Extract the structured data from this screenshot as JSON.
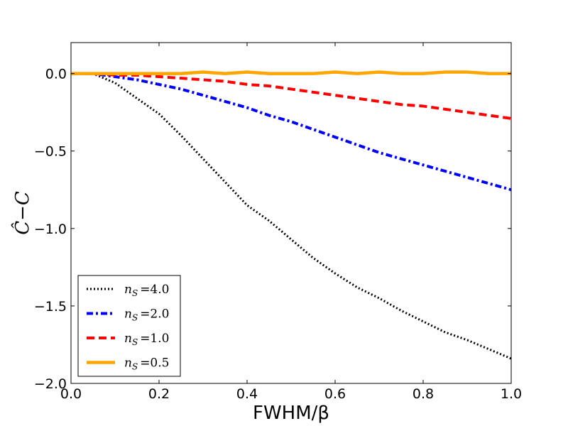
{
  "chart_data": {
    "type": "line",
    "title": "",
    "xlabel": "FWHM/β",
    "ylabel": "Ĉ−C",
    "xlim": [
      0.0,
      1.0
    ],
    "ylim": [
      -2.0,
      0.2
    ],
    "xticks": [
      0.0,
      0.2,
      0.4,
      0.6,
      0.8,
      1.0
    ],
    "xtick_labels": [
      "0.0",
      "0.2",
      "0.4",
      "0.6",
      "0.8",
      "1.0"
    ],
    "yticks": [
      0.0,
      -0.5,
      -1.0,
      -1.5,
      -2.0
    ],
    "ytick_labels": [
      "0.0",
      "−0.5",
      "−1.0",
      "−1.5",
      "−2.0"
    ],
    "grid": false,
    "legend_position": "lower-left",
    "x": [
      0.0,
      0.05,
      0.1,
      0.15,
      0.2,
      0.25,
      0.3,
      0.35,
      0.4,
      0.45,
      0.5,
      0.55,
      0.6,
      0.65,
      0.7,
      0.75,
      0.8,
      0.85,
      0.9,
      0.95,
      1.0
    ],
    "series": [
      {
        "name": "n_S = 4.0",
        "legend_label": "n",
        "legend_sub": "S",
        "legend_value": "=4.0",
        "color": "#000000",
        "style": "dotted",
        "values": [
          0.0,
          0.0,
          -0.06,
          -0.16,
          -0.26,
          -0.4,
          -0.55,
          -0.7,
          -0.85,
          -0.95,
          -1.07,
          -1.19,
          -1.29,
          -1.38,
          -1.45,
          -1.53,
          -1.6,
          -1.67,
          -1.72,
          -1.78,
          -1.84
        ]
      },
      {
        "name": "n_S = 2.0",
        "legend_label": "n",
        "legend_sub": "S",
        "legend_value": "=2.0",
        "color": "#0000ff",
        "style": "dashdot",
        "values": [
          0.0,
          0.0,
          -0.02,
          -0.04,
          -0.07,
          -0.1,
          -0.14,
          -0.18,
          -0.22,
          -0.27,
          -0.31,
          -0.36,
          -0.41,
          -0.46,
          -0.51,
          -0.55,
          -0.59,
          -0.63,
          -0.67,
          -0.71,
          -0.75
        ]
      },
      {
        "name": "n_S = 1.0",
        "legend_label": "n",
        "legend_sub": "S",
        "legend_value": "=1.0",
        "color": "#ff0000",
        "style": "dashed",
        "values": [
          0.0,
          0.0,
          -0.01,
          -0.01,
          -0.02,
          -0.03,
          -0.04,
          -0.05,
          -0.07,
          -0.08,
          -0.1,
          -0.12,
          -0.14,
          -0.16,
          -0.18,
          -0.2,
          -0.21,
          -0.23,
          -0.25,
          -0.27,
          -0.29
        ]
      },
      {
        "name": "n_S = 0.5",
        "legend_label": "n",
        "legend_sub": "S",
        "legend_value": "=0.5",
        "color": "#ffa500",
        "style": "solid",
        "values": [
          0.0,
          0.0,
          0.0,
          0.0,
          0.0,
          0.0,
          0.01,
          0.0,
          0.01,
          0.0,
          0.0,
          0.0,
          0.01,
          0.0,
          0.01,
          0.0,
          0.0,
          0.01,
          0.01,
          0.0,
          0.0
        ]
      }
    ]
  }
}
